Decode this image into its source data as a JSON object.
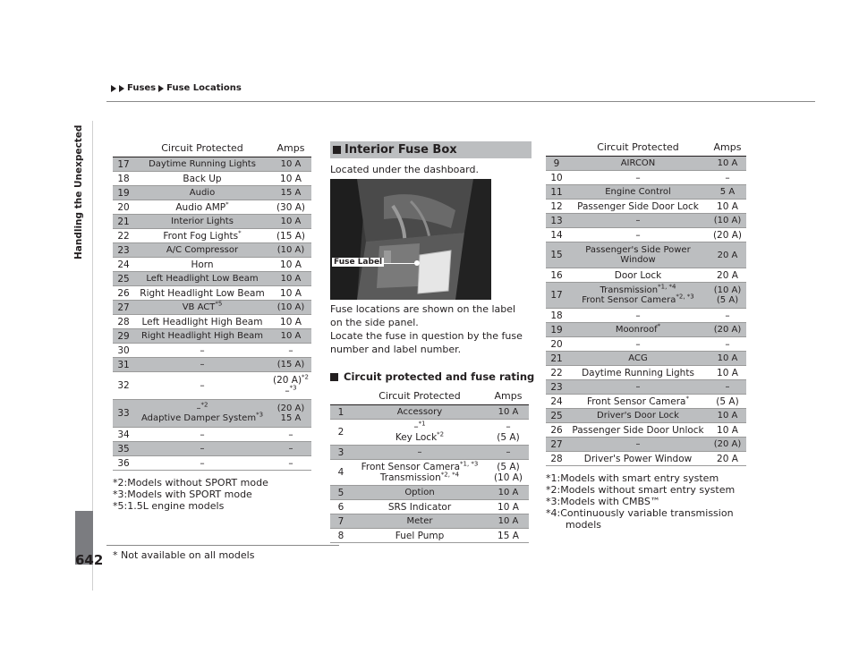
{
  "breadcrumb": [
    "Fuses",
    "Fuse Locations"
  ],
  "sidebar_label": "Handling the Unexpected",
  "page_number": "642",
  "not_available_note": "* Not available on all models",
  "left_table": {
    "headers": [
      "Circuit Protected",
      "Amps"
    ],
    "rows": [
      {
        "no": "17",
        "circuit": "Daytime Running Lights",
        "amps": "10 A",
        "shade": true
      },
      {
        "no": "18",
        "circuit": "Back Up",
        "amps": "10 A",
        "shade": false
      },
      {
        "no": "19",
        "circuit": "Audio",
        "amps": "15 A",
        "shade": true
      },
      {
        "no": "20",
        "circuit": "Audio AMP",
        "circuit_sup": "*",
        "amps": "(30 A)",
        "shade": false
      },
      {
        "no": "21",
        "circuit": "Interior Lights",
        "amps": "10 A",
        "shade": true
      },
      {
        "no": "22",
        "circuit": "Front Fog Lights",
        "circuit_sup": "*",
        "amps": "(15 A)",
        "shade": false
      },
      {
        "no": "23",
        "circuit": "A/C Compressor",
        "amps": "(10 A)",
        "shade": true
      },
      {
        "no": "24",
        "circuit": "Horn",
        "amps": "10 A",
        "shade": false
      },
      {
        "no": "25",
        "circuit": "Left Headlight Low Beam",
        "amps": "10 A",
        "shade": true
      },
      {
        "no": "26",
        "circuit": "Right Headlight Low Beam",
        "amps": "10 A",
        "shade": false
      },
      {
        "no": "27",
        "circuit": "VB ACT",
        "circuit_sup": "*5",
        "amps": "(10 A)",
        "shade": true
      },
      {
        "no": "28",
        "circuit": "Left Headlight High Beam",
        "amps": "10 A",
        "shade": false
      },
      {
        "no": "29",
        "circuit": "Right Headlight High Beam",
        "amps": "10 A",
        "shade": true
      },
      {
        "no": "30",
        "circuit": "–",
        "amps": "–",
        "shade": false
      },
      {
        "no": "31",
        "circuit": "–",
        "amps": "(15 A)",
        "shade": true
      },
      {
        "no": "32",
        "circuit": "–",
        "amps": "(20 A)",
        "amps_sup": "*2",
        "amps2": "–",
        "amps2_sup": "*3",
        "shade": false
      },
      {
        "no": "33",
        "circuit": "–",
        "circuit_sup": "*2",
        "circuit2": "Adaptive Damper System",
        "circuit2_sup": "*3",
        "amps": "(20 A)",
        "amps2": "15 A",
        "shade": true
      },
      {
        "no": "34",
        "circuit": "–",
        "amps": "–",
        "shade": false
      },
      {
        "no": "35",
        "circuit": "–",
        "amps": "–",
        "shade": true
      },
      {
        "no": "36",
        "circuit": "–",
        "amps": "–",
        "shade": false
      }
    ],
    "notes": [
      "*2:Models without SPORT mode",
      "*3:Models with SPORT mode",
      "*5:1.5L engine models"
    ]
  },
  "interior": {
    "title": "Interior Fuse Box",
    "location_text": "Located under the dashboard.",
    "photo_label": "Fuse Label",
    "para1": "Fuse locations are shown on the label on the side panel.",
    "para2": "Locate the fuse in question by the fuse number and label number.",
    "subheading": "Circuit protected and fuse rating"
  },
  "mid_table": {
    "headers": [
      "Circuit Protected",
      "Amps"
    ],
    "rows": [
      {
        "no": "1",
        "circuit": "Accessory",
        "amps": "10 A",
        "shade": true
      },
      {
        "no": "2",
        "circuit": "–",
        "circuit_sup": "*1",
        "circuit2": "Key Lock",
        "circuit2_sup": "*2",
        "amps": "–",
        "amps2": "(5 A)",
        "shade": false
      },
      {
        "no": "3",
        "circuit": "–",
        "amps": "–",
        "shade": true
      },
      {
        "no": "4",
        "circuit": "Front Sensor Camera",
        "circuit_sup": "*1, *3",
        "circuit2": "Transmission",
        "circuit2_sup": "*2, *4",
        "amps": "(5 A)",
        "amps2": "(10 A)",
        "shade": false
      },
      {
        "no": "5",
        "circuit": "Option",
        "amps": "10 A",
        "shade": true
      },
      {
        "no": "6",
        "circuit": "SRS Indicator",
        "amps": "10 A",
        "shade": false
      },
      {
        "no": "7",
        "circuit": "Meter",
        "amps": "10 A",
        "shade": true
      },
      {
        "no": "8",
        "circuit": "Fuel Pump",
        "amps": "15 A",
        "shade": false
      }
    ]
  },
  "right_table": {
    "headers": [
      "Circuit Protected",
      "Amps"
    ],
    "rows": [
      {
        "no": "9",
        "circuit": "AIRCON",
        "amps": "10 A",
        "shade": true
      },
      {
        "no": "10",
        "circuit": "–",
        "amps": "–",
        "shade": false
      },
      {
        "no": "11",
        "circuit": "Engine Control",
        "amps": "5 A",
        "shade": true
      },
      {
        "no": "12",
        "circuit": "Passenger Side Door Lock",
        "amps": "10 A",
        "shade": false
      },
      {
        "no": "13",
        "circuit": "–",
        "amps": "(10 A)",
        "shade": true
      },
      {
        "no": "14",
        "circuit": "–",
        "amps": "(20 A)",
        "shade": false
      },
      {
        "no": "15",
        "circuit": "Passenger's Side Power",
        "circuit2": "Window",
        "amps": "20 A",
        "shade": true
      },
      {
        "no": "16",
        "circuit": "Door Lock",
        "amps": "20 A",
        "shade": false
      },
      {
        "no": "17",
        "circuit": "Transmission",
        "circuit_sup": "*1, *4",
        "circuit2": "Front Sensor Camera",
        "circuit2_sup": "*2, *3",
        "amps": "(10 A)",
        "amps2": "(5 A)",
        "shade": true
      },
      {
        "no": "18",
        "circuit": "–",
        "amps": "–",
        "shade": false
      },
      {
        "no": "19",
        "circuit": "Moonroof",
        "circuit_sup": "*",
        "amps": "(20 A)",
        "shade": true
      },
      {
        "no": "20",
        "circuit": "–",
        "amps": "–",
        "shade": false
      },
      {
        "no": "21",
        "circuit": "ACG",
        "amps": "10 A",
        "shade": true
      },
      {
        "no": "22",
        "circuit": "Daytime Running Lights",
        "amps": "10 A",
        "shade": false
      },
      {
        "no": "23",
        "circuit": "–",
        "amps": "–",
        "shade": true
      },
      {
        "no": "24",
        "circuit": "Front Sensor Camera",
        "circuit_sup": "*",
        "amps": "(5 A)",
        "shade": false
      },
      {
        "no": "25",
        "circuit": "Driver's Door Lock",
        "amps": "10 A",
        "shade": true
      },
      {
        "no": "26",
        "circuit": "Passenger Side Door Unlock",
        "amps": "10 A",
        "shade": false
      },
      {
        "no": "27",
        "circuit": "–",
        "amps": "(20 A)",
        "shade": true
      },
      {
        "no": "28",
        "circuit": "Driver's Power Window",
        "amps": "20 A",
        "shade": false
      }
    ],
    "notes": [
      "*1:Models with smart entry system",
      "*2:Models without smart entry system",
      "*3:Models with CMBS™",
      "*4:Continuously variable transmission",
      "    models"
    ]
  }
}
